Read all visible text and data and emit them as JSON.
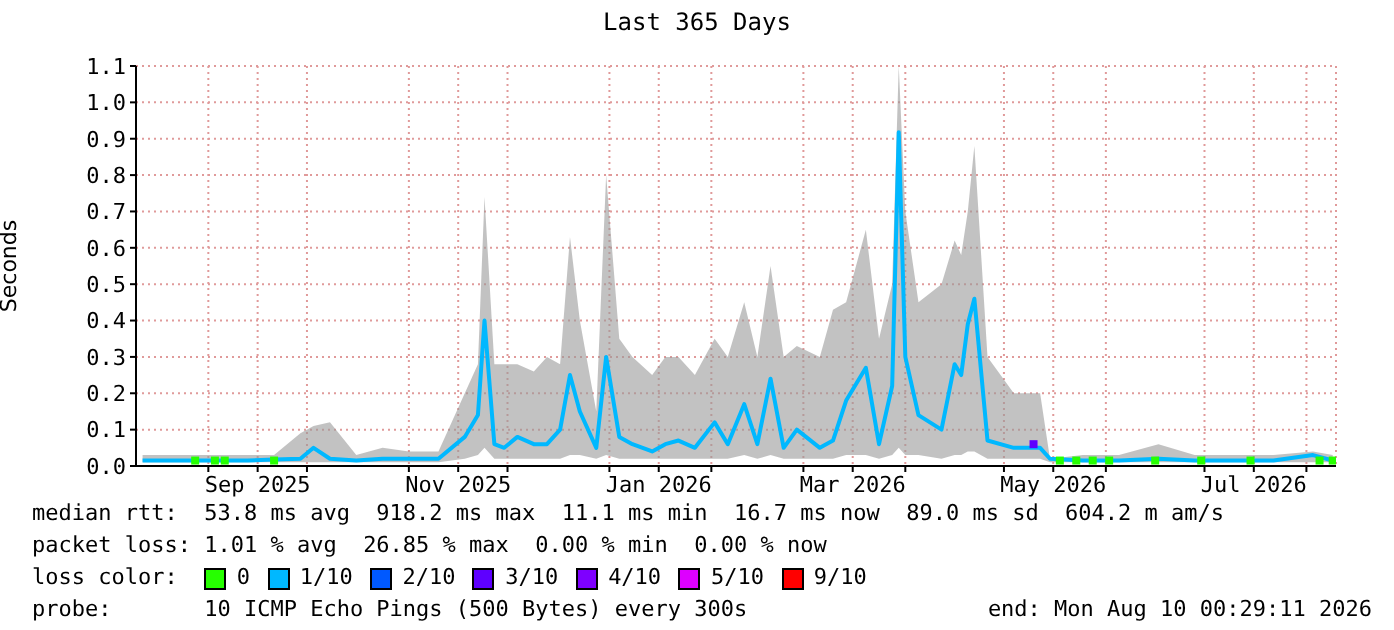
{
  "chart_data": {
    "type": "line",
    "title": "Last 365 Days",
    "ylabel": "Seconds",
    "xlim": [
      "2025-08-10",
      "2026-08-10"
    ],
    "xticks": [
      {
        "value": "2025-09-01",
        "label": null
      },
      {
        "value": "2025-09-16",
        "label": "Sep 2025"
      },
      {
        "value": "2025-10-01",
        "label": null
      },
      {
        "value": "2025-11-01",
        "label": null
      },
      {
        "value": "2025-11-16",
        "label": "Nov 2025"
      },
      {
        "value": "2025-12-01",
        "label": null
      },
      {
        "value": "2026-01-01",
        "label": null
      },
      {
        "value": "2026-01-16",
        "label": "Jan 2026"
      },
      {
        "value": "2026-02-01",
        "label": null
      },
      {
        "value": "2026-03-01",
        "label": null
      },
      {
        "value": "2026-03-16",
        "label": "Mar 2026"
      },
      {
        "value": "2026-04-01",
        "label": null
      },
      {
        "value": "2026-05-01",
        "label": null
      },
      {
        "value": "2026-05-16",
        "label": "May 2026"
      },
      {
        "value": "2026-06-01",
        "label": null
      },
      {
        "value": "2026-07-01",
        "label": null
      },
      {
        "value": "2026-07-16",
        "label": "Jul 2026"
      },
      {
        "value": "2026-08-01",
        "label": null
      }
    ],
    "ylim": [
      0,
      1.1
    ],
    "yticks": [
      {
        "value": 0,
        "label": "0.0"
      },
      0.1,
      0.2,
      0.3,
      0.4,
      0.5,
      0.6,
      0.7,
      0.8,
      0.9,
      {
        "value": 1,
        "label": "1.0"
      },
      1.1
    ],
    "grid": true,
    "legend": "bottom",
    "legend_title": "loss color:",
    "series": [
      {
        "name": "0",
        "color": "#26ff00",
        "type": "scatter",
        "marker": "square",
        "x": [
          "2025-08-28",
          "2025-09-03",
          "2025-09-06",
          "2025-09-21",
          "2026-05-18",
          "2026-05-23",
          "2026-05-28",
          "2026-06-02",
          "2026-06-16",
          "2026-06-30",
          "2026-07-15",
          "2026-08-05",
          "2026-08-09"
        ],
        "values": [
          0.015,
          0.015,
          0.015,
          0.015,
          0.015,
          0.015,
          0.015,
          0.015,
          0.015,
          0.015,
          0.015,
          0.015,
          0.015
        ]
      },
      {
        "name": "1/10",
        "color": "#00b8ff",
        "x": [
          "2025-08-12",
          "2025-08-20",
          "2025-08-28",
          "2025-09-05",
          "2025-09-13",
          "2025-09-21",
          "2025-09-29",
          "2025-10-03",
          "2025-10-08",
          "2025-10-16",
          "2025-10-24",
          "2025-11-01",
          "2025-11-10",
          "2025-11-18",
          "2025-11-22",
          "2025-11-24",
          "2025-11-27",
          "2025-11-30",
          "2025-12-04",
          "2025-12-09",
          "2025-12-13",
          "2025-12-17",
          "2025-12-20",
          "2025-12-23",
          "2025-12-28",
          "2025-12-31",
          "2026-01-04",
          "2026-01-08",
          "2026-01-14",
          "2026-01-18",
          "2026-01-22",
          "2026-01-27",
          "2026-02-02",
          "2026-02-06",
          "2026-02-11",
          "2026-02-15",
          "2026-02-19",
          "2026-02-23",
          "2026-02-27",
          "2026-03-06",
          "2026-03-10",
          "2026-03-14",
          "2026-03-20",
          "2026-03-24",
          "2026-03-28",
          "2026-03-30",
          "2026-04-01",
          "2026-04-05",
          "2026-04-12",
          "2026-04-16",
          "2026-04-18",
          "2026-04-20",
          "2026-04-22",
          "2026-04-26",
          "2026-05-04",
          "2026-05-12",
          "2026-05-15",
          "2026-05-25",
          "2026-06-05",
          "2026-06-17",
          "2026-06-28",
          "2026-07-10",
          "2026-07-22",
          "2026-08-03",
          "2026-08-09"
        ],
        "values": [
          0.015,
          0.015,
          0.015,
          0.015,
          0.015,
          0.018,
          0.02,
          0.05,
          0.02,
          0.015,
          0.02,
          0.02,
          0.02,
          0.08,
          0.14,
          0.4,
          0.06,
          0.05,
          0.08,
          0.06,
          0.06,
          0.1,
          0.25,
          0.15,
          0.05,
          0.3,
          0.08,
          0.06,
          0.04,
          0.06,
          0.07,
          0.05,
          0.12,
          0.06,
          0.17,
          0.06,
          0.24,
          0.05,
          0.1,
          0.05,
          0.07,
          0.18,
          0.27,
          0.06,
          0.22,
          0.918,
          0.3,
          0.14,
          0.1,
          0.28,
          0.25,
          0.39,
          0.46,
          0.07,
          0.05,
          0.05,
          0.02,
          0.015,
          0.015,
          0.02,
          0.015,
          0.015,
          0.015,
          0.03,
          0.015
        ],
        "lower": [
          0.01,
          0.01,
          0.01,
          0.01,
          0.01,
          0.01,
          0.01,
          0.01,
          0.01,
          0.01,
          0.01,
          0.01,
          0.01,
          0.02,
          0.03,
          0.05,
          0.02,
          0.02,
          0.02,
          0.02,
          0.02,
          0.02,
          0.03,
          0.03,
          0.02,
          0.03,
          0.02,
          0.02,
          0.02,
          0.02,
          0.02,
          0.02,
          0.02,
          0.02,
          0.03,
          0.02,
          0.03,
          0.02,
          0.02,
          0.02,
          0.02,
          0.03,
          0.03,
          0.02,
          0.03,
          0.05,
          0.03,
          0.03,
          0.02,
          0.03,
          0.03,
          0.04,
          0.04,
          0.02,
          0.02,
          0.02,
          0.01,
          0.01,
          0.01,
          0.01,
          0.01,
          0.01,
          0.01,
          0.01,
          0.01
        ],
        "upper": [
          0.03,
          0.03,
          0.03,
          0.03,
          0.03,
          0.03,
          0.09,
          0.11,
          0.12,
          0.03,
          0.05,
          0.04,
          0.04,
          0.2,
          0.28,
          0.74,
          0.28,
          0.28,
          0.28,
          0.26,
          0.3,
          0.28,
          0.63,
          0.4,
          0.15,
          0.8,
          0.35,
          0.3,
          0.25,
          0.3,
          0.3,
          0.25,
          0.35,
          0.3,
          0.45,
          0.3,
          0.55,
          0.3,
          0.33,
          0.3,
          0.43,
          0.45,
          0.65,
          0.35,
          0.5,
          1.1,
          0.7,
          0.45,
          0.5,
          0.62,
          0.58,
          0.7,
          0.88,
          0.3,
          0.2,
          0.2,
          0.02,
          0.03,
          0.03,
          0.06,
          0.03,
          0.03,
          0.03,
          0.04,
          0.03
        ]
      },
      {
        "name": "2/10",
        "color": "#0059ff",
        "type": "scatter",
        "marker": "square"
      },
      {
        "name": "3/10",
        "color": "#5e00ff",
        "type": "scatter",
        "marker": "square",
        "x": [
          "2026-05-10"
        ],
        "values": [
          0.06
        ]
      },
      {
        "name": "4/10",
        "color": "#7e00ff",
        "type": "scatter",
        "marker": "square"
      },
      {
        "name": "5/10",
        "color": "#dd00ff",
        "type": "scatter",
        "marker": "square"
      },
      {
        "name": "9/10",
        "color": "#ff0000",
        "type": "scatter",
        "marker": "square"
      }
    ],
    "annotations": [
      "median rtt:  53.8 ms avg  918.2 ms max  11.1 ms min  16.7 ms now  89.0 ms sd  604.2 m am/s",
      "packet loss: 1.01 % avg  26.85 % max  0.00 % min  0.00 % now",
      "probe:       10 ICMP Echo Pings (500 Bytes) every 300s",
      "end: Mon Aug 10 00:29:11 2026"
    ]
  }
}
